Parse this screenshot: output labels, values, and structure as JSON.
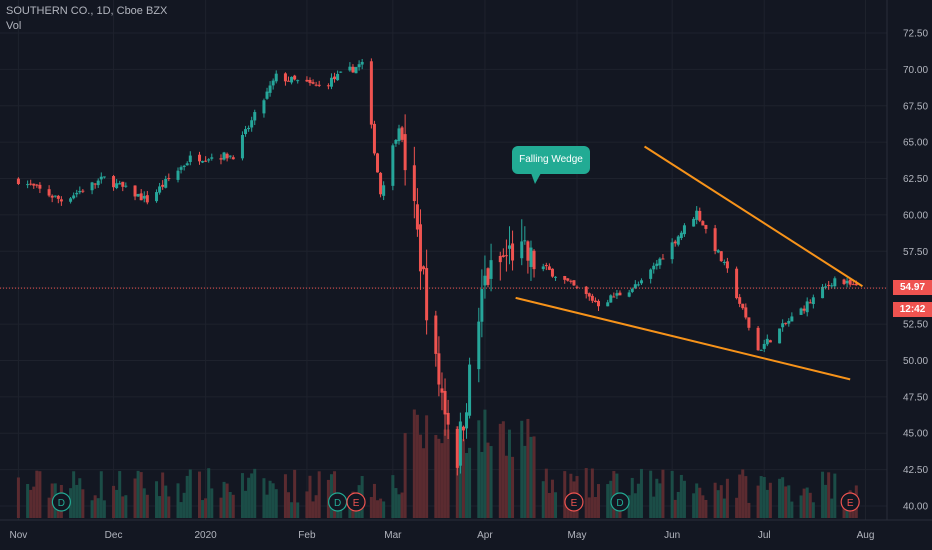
{
  "header": {
    "symbol_line": "SOUTHERN CO., 1D, Cboe BZX",
    "indicator_label": "Vol"
  },
  "price_axis": {
    "current_price": "54.97",
    "countdown": "12:42",
    "current_price_color": "#ef5350"
  },
  "annotation": {
    "label": "Falling Wedge",
    "color": "#22ab94"
  },
  "event_markers": [
    {
      "label": "D",
      "type": "dividend",
      "month": "Nov"
    },
    {
      "label": "D",
      "type": "dividend",
      "month": "Feb"
    },
    {
      "label": "E",
      "type": "earnings",
      "month": "Feb"
    },
    {
      "label": "E",
      "type": "earnings",
      "month": "Apr"
    },
    {
      "label": "D",
      "type": "dividend",
      "month": "May"
    },
    {
      "label": "E",
      "type": "earnings",
      "month": "Jul"
    }
  ],
  "colors": {
    "background": "#131722",
    "up": "#26a69a",
    "down": "#ef5350",
    "trendline": "#f7931a",
    "grid": "#1e222d",
    "text": "#b2b5be"
  },
  "chart_data": {
    "type": "candlestick",
    "title": "SOUTHERN CO., 1D, Cboe BZX",
    "ylim": [
      39.5,
      73.5
    ],
    "y_ticks": [
      "72.50",
      "70.00",
      "67.50",
      "65.00",
      "62.50",
      "60.00",
      "57.50",
      "55.00",
      "52.50",
      "50.00",
      "47.50",
      "45.00",
      "42.50",
      "40.00"
    ],
    "x_ticks": [
      "Nov",
      "Dec",
      "2020",
      "Feb",
      "Mar",
      "Apr",
      "May",
      "Jun",
      "Jul",
      "Aug"
    ],
    "grid": true,
    "price_line": 54.97,
    "pattern": "Falling Wedge",
    "upper_trendline": [
      [
        "2020-05-23",
        64.7
      ],
      [
        "2020-08-02",
        55.1
      ]
    ],
    "lower_trendline": [
      [
        "2020-04-11",
        54.3
      ],
      [
        "2020-07-29",
        48.7
      ]
    ],
    "close_series": [
      [
        "2019-11-01",
        62.4
      ],
      [
        "2019-11-15",
        61.0
      ],
      [
        "2019-11-29",
        62.5
      ],
      [
        "2019-12-13",
        61.0
      ],
      [
        "2019-12-27",
        63.9
      ],
      [
        "2020-01-10",
        64.1
      ],
      [
        "2020-01-24",
        69.5
      ],
      [
        "2020-02-07",
        68.8
      ],
      [
        "2020-02-21",
        70.4
      ],
      [
        "2020-02-27",
        61.5
      ],
      [
        "2020-03-04",
        66.2
      ],
      [
        "2020-03-09",
        60.0
      ],
      [
        "2020-03-16",
        49.5
      ],
      [
        "2020-03-23",
        43.5
      ],
      [
        "2020-04-01",
        55.5
      ],
      [
        "2020-04-10",
        57.6
      ],
      [
        "2020-04-24",
        55.9
      ],
      [
        "2020-05-08",
        53.9
      ],
      [
        "2020-05-22",
        55.3
      ],
      [
        "2020-06-09",
        60.2
      ],
      [
        "2020-06-19",
        56.1
      ],
      [
        "2020-06-29",
        50.7
      ],
      [
        "2020-07-10",
        52.9
      ],
      [
        "2020-07-24",
        55.6
      ],
      [
        "2020-07-31",
        54.97
      ]
    ]
  }
}
